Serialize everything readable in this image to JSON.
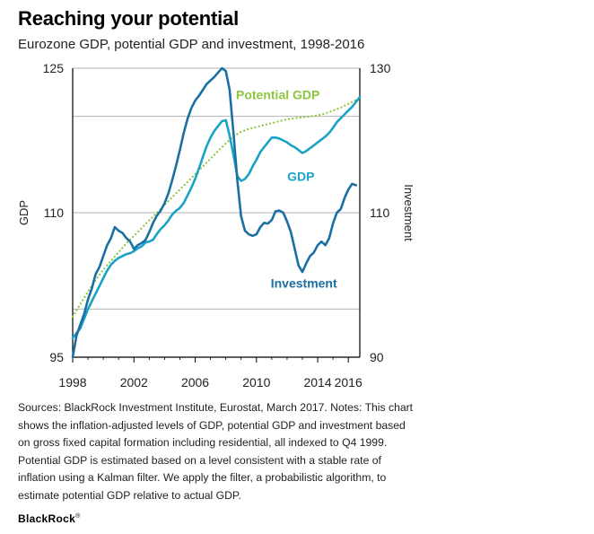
{
  "title": "Reaching your potential",
  "subtitle": "Eurozone GDP, potential GDP and investment, 1998-2016",
  "chart_data": {
    "type": "line",
    "title": "Reaching your potential",
    "subtitle": "Eurozone GDP, potential GDP and investment, 1998-2016",
    "xlabel": "",
    "ylabel_left": "GDP",
    "ylabel_right": "Investment",
    "xlim": [
      1998,
      2016.75
    ],
    "ylim_left": [
      95,
      125
    ],
    "ylim_right": [
      90,
      130
    ],
    "yticks_left": [
      95,
      110,
      125
    ],
    "yticks_right": [
      90,
      110,
      130
    ],
    "ytick_labels_left": [
      "95",
      "110",
      "125"
    ],
    "ytick_labels_right": [
      "90",
      "110",
      "130"
    ],
    "xticks": [
      1998,
      2002,
      2006,
      2010,
      2014,
      2016
    ],
    "xtick_labels": [
      "1998",
      "2002",
      "2006",
      "2010",
      "2014",
      "2016"
    ],
    "grid": true,
    "series": [
      {
        "name": "Potential GDP",
        "axis": "left",
        "style": "dotted",
        "color": "#8DC63F",
        "label": "Potential GDP",
        "x": [
          1998,
          1998.5,
          1999,
          1999.5,
          2000,
          2000.5,
          2001,
          2001.5,
          2002,
          2002.5,
          2003,
          2003.5,
          2004,
          2004.5,
          2005,
          2005.5,
          2006,
          2006.5,
          2007,
          2007.5,
          2008,
          2008.5,
          2009,
          2009.5,
          2010,
          2010.5,
          2011,
          2011.5,
          2012,
          2012.5,
          2013,
          2013.5,
          2014,
          2014.5,
          2015,
          2015.5,
          2016,
          2016.5
        ],
        "values": [
          99.2,
          100.5,
          101.8,
          103.0,
          104.1,
          105.0,
          105.9,
          106.8,
          107.6,
          108.4,
          109.2,
          110.0,
          110.8,
          111.6,
          112.4,
          113.2,
          114.0,
          114.8,
          115.6,
          116.4,
          117.2,
          117.9,
          118.4,
          118.7,
          118.9,
          119.1,
          119.3,
          119.5,
          119.7,
          119.8,
          119.9,
          120.0,
          120.1,
          120.3,
          120.6,
          120.9,
          121.3,
          121.7
        ]
      },
      {
        "name": "GDP",
        "axis": "left",
        "style": "solid",
        "color": "#1BA3C6",
        "label": "GDP",
        "x": [
          1998,
          1998.25,
          1998.5,
          1998.75,
          1999,
          1999.25,
          1999.5,
          1999.75,
          2000,
          2000.25,
          2000.5,
          2000.75,
          2001,
          2001.25,
          2001.5,
          2001.75,
          2002,
          2002.25,
          2002.5,
          2002.75,
          2003,
          2003.25,
          2003.5,
          2003.75,
          2004,
          2004.25,
          2004.5,
          2004.75,
          2005,
          2005.25,
          2005.5,
          2005.75,
          2006,
          2006.25,
          2006.5,
          2006.75,
          2007,
          2007.25,
          2007.5,
          2007.75,
          2008,
          2008.25,
          2008.5,
          2008.75,
          2009,
          2009.25,
          2009.5,
          2009.75,
          2010,
          2010.25,
          2010.5,
          2010.75,
          2011,
          2011.25,
          2011.5,
          2011.75,
          2012,
          2012.25,
          2012.5,
          2012.75,
          2013,
          2013.25,
          2013.5,
          2013.75,
          2014,
          2014.25,
          2014.5,
          2014.75,
          2015,
          2015.25,
          2015.5,
          2015.75,
          2016,
          2016.25,
          2016.5,
          2016.75
        ],
        "values": [
          97.0,
          97.5,
          98.0,
          99.0,
          100.0,
          100.8,
          101.6,
          102.4,
          103.2,
          104.0,
          104.6,
          105.0,
          105.3,
          105.5,
          105.7,
          105.8,
          106.0,
          106.3,
          106.5,
          106.9,
          107.0,
          107.2,
          107.8,
          108.3,
          108.7,
          109.2,
          109.8,
          110.2,
          110.5,
          111.0,
          111.8,
          112.6,
          113.5,
          114.6,
          115.8,
          116.9,
          117.8,
          118.5,
          119.0,
          119.5,
          119.6,
          118.0,
          116.0,
          113.8,
          113.3,
          113.5,
          114.0,
          114.8,
          115.5,
          116.3,
          116.8,
          117.3,
          117.8,
          117.8,
          117.7,
          117.5,
          117.3,
          117.0,
          116.8,
          116.5,
          116.2,
          116.4,
          116.7,
          117.0,
          117.3,
          117.6,
          117.9,
          118.3,
          118.8,
          119.4,
          119.8,
          120.2,
          120.6,
          121.0,
          121.5,
          122.0
        ]
      },
      {
        "name": "Investment",
        "axis": "right",
        "style": "solid",
        "color": "#1A6FA3",
        "label": "Investment",
        "x": [
          1998,
          1998.25,
          1998.5,
          1998.75,
          1999,
          1999.25,
          1999.5,
          1999.75,
          2000,
          2000.25,
          2000.5,
          2000.75,
          2001,
          2001.25,
          2001.5,
          2001.75,
          2002,
          2002.25,
          2002.5,
          2002.75,
          2003,
          2003.25,
          2003.5,
          2003.75,
          2004,
          2004.25,
          2004.5,
          2004.75,
          2005,
          2005.25,
          2005.5,
          2005.75,
          2006,
          2006.25,
          2006.5,
          2006.75,
          2007,
          2007.25,
          2007.5,
          2007.75,
          2008,
          2008.25,
          2008.5,
          2008.75,
          2009,
          2009.25,
          2009.5,
          2009.75,
          2010,
          2010.25,
          2010.5,
          2010.75,
          2011,
          2011.25,
          2011.5,
          2011.75,
          2012,
          2012.25,
          2012.5,
          2012.75,
          2013,
          2013.25,
          2013.5,
          2013.75,
          2014,
          2014.25,
          2014.5,
          2014.75,
          2015,
          2015.25,
          2015.5,
          2015.75,
          2016,
          2016.25,
          2016.5
        ],
        "values": [
          90.0,
          93.0,
          94.5,
          96.0,
          98.0,
          99.5,
          101.5,
          102.5,
          104.0,
          105.5,
          106.5,
          108.0,
          107.5,
          107.2,
          106.5,
          106.0,
          105.0,
          105.5,
          105.8,
          106.2,
          107.3,
          108.6,
          109.6,
          110.3,
          111.3,
          112.7,
          114.5,
          116.5,
          118.7,
          121.0,
          123.0,
          124.5,
          125.5,
          126.2,
          127.0,
          127.8,
          128.3,
          128.8,
          129.4,
          130.0,
          129.6,
          127.0,
          121.0,
          114.5,
          109.5,
          107.5,
          107.0,
          106.8,
          107.0,
          108.0,
          108.6,
          108.5,
          109.0,
          110.2,
          110.3,
          110.0,
          108.8,
          107.3,
          105.0,
          102.7,
          101.8,
          103.0,
          104.0,
          104.5,
          105.5,
          106.0,
          105.5,
          106.5,
          108.5,
          110.0,
          110.5,
          112.0,
          113.2,
          114.0,
          113.8
        ]
      }
    ],
    "annotations": [
      {
        "text": "Potential GDP",
        "series": "Potential GDP"
      },
      {
        "text": "GDP",
        "series": "GDP"
      },
      {
        "text": "Investment",
        "series": "Investment"
      }
    ]
  },
  "notes": "Sources: BlackRock Investment Institute, Eurostat, March 2017. Notes: This chart shows the inflation-adjusted levels of GDP, potential GDP and investment based on gross fixed capital formation including residential, all indexed to Q4 1999. Potential GDP is estimated based on a level consistent with a stable rate of inflation using a Kalman filter. We apply the filter, a probabilistic algorithm, to estimate potential GDP relative to actual GDP.",
  "brand": {
    "name": "BlackRock",
    "mark": "®"
  },
  "colors": {
    "potential": "#8DC63F",
    "gdp": "#1BA3C6",
    "investment": "#1A6FA3",
    "grid": "#b3b3b3",
    "axis": "#000000"
  }
}
